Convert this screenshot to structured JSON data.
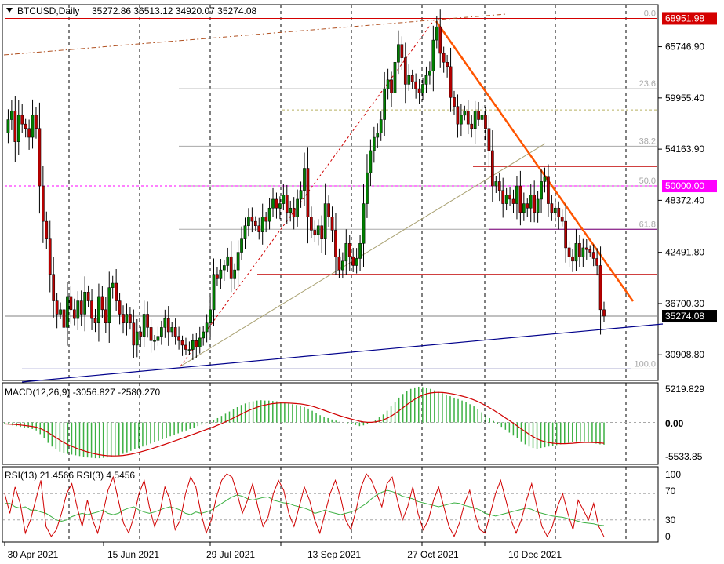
{
  "header": {
    "symbol": "BTCUSD,Daily",
    "ohlc": "35272.86 36513.12 34920.07 35274.08",
    "macd_label": "MACD(12,26,9) -3056.827 -2580.270",
    "rsi_label": "RSI(13) 21.4566  RSI(3) 4.5456"
  },
  "colors": {
    "up_candle": "#008000",
    "down_candle": "#b80000",
    "trendline_orange": "#ff5500",
    "blue_line": "#00008b",
    "resistance_red": "#c00000",
    "magenta": "#ff00ff",
    "macd_hist": "#3cb043",
    "signal": "#d00000",
    "rsi13": "#3cb043",
    "rsi3": "#d00000"
  },
  "price_axis": {
    "ticks": [
      "65746.90",
      "59955.40",
      "54163.90",
      "48372.40",
      "42491.80",
      "36700.30",
      "30908.80"
    ],
    "tags": [
      {
        "text": "68951.98",
        "bg": "#d40000",
        "value": 68951.98
      },
      {
        "text": "50000.00",
        "bg": "#ff00ff",
        "value": 50000
      },
      {
        "text": "35274.08",
        "bg": "#000000",
        "value": 35274.08
      }
    ]
  },
  "fibonacci": [
    "0.0",
    "23.6",
    "38.2",
    "50.0",
    "61.8",
    "100.0"
  ],
  "macd_axis": [
    "5219.829",
    "0.00",
    "-5533.85"
  ],
  "rsi_axis": [
    "100",
    "70",
    "30",
    "0"
  ],
  "date_axis": [
    "30 Apr 2021",
    "15 Jun 2021",
    "29 Jul 2021",
    "13 Sep 2021",
    "27 Oct 2021",
    "10 Dec 2021"
  ],
  "chart_data": {
    "type": "candlestick",
    "title": "BTCUSD,Daily",
    "last_ohlc": {
      "open": 35272.86,
      "high": 36513.12,
      "low": 34920.07,
      "close": 35274.08
    },
    "ylim": [
      28000,
      70500
    ],
    "x_ticks": [
      "30 Apr 2021",
      "15 Jun 2021",
      "29 Jul 2021",
      "13 Sep 2021",
      "27 Oct 2021",
      "10 Dec 2021"
    ],
    "close_path": [
      56000,
      57500,
      58500,
      55000,
      58000,
      57000,
      56500,
      55500,
      58000,
      56500,
      50000,
      46000,
      44000,
      40000,
      37000,
      35500,
      36000,
      34000,
      37500,
      36000,
      35000,
      37000,
      35500,
      38000,
      37000,
      35000,
      34500,
      37500,
      36000,
      34500,
      38500,
      39000,
      37000,
      35500,
      34500,
      35500,
      34500,
      32000,
      33500,
      33000,
      35500,
      34000,
      32500,
      32500,
      33000,
      34000,
      35000,
      33500,
      34000,
      33000,
      32500,
      32000,
      31500,
      31500,
      32500,
      31800,
      32800,
      33500,
      34500,
      36000,
      40000,
      39500,
      40500,
      41000,
      42000,
      39500,
      40500,
      42500,
      44000,
      45500,
      46500,
      46000,
      45500,
      44800,
      46500,
      46000,
      47500,
      48500,
      47500,
      48000,
      49000,
      47000,
      47500,
      46500,
      48500,
      49500,
      52000,
      46500,
      45000,
      44500,
      45500,
      44000,
      48000,
      46500,
      45000,
      42000,
      40500,
      41500,
      43500,
      42000,
      41000,
      41800,
      43500,
      48000,
      51500,
      54000,
      55500,
      56000,
      57500,
      61000,
      62000,
      60500,
      64000,
      66000,
      64500,
      61500,
      62500,
      61800,
      61000,
      60500,
      61500,
      62500,
      63000,
      66500,
      68000,
      65000,
      64000,
      63500,
      60000,
      59000,
      57000,
      58000,
      58500,
      57000,
      56500,
      58500,
      57500,
      58000,
      56500,
      54000,
      50000,
      50500,
      49500,
      48000,
      49000,
      48500,
      48000,
      50000,
      47000,
      48000,
      47500,
      49000,
      47000,
      48500,
      50500,
      51000,
      48000,
      47000,
      47500,
      46500,
      46000,
      43000,
      42000,
      41500,
      43500,
      42000,
      43000,
      42800,
      42500,
      41800,
      41000,
      36000,
      35274.08
    ],
    "fibonacci_levels": [
      {
        "label": "0.0",
        "price": 68951.98
      },
      {
        "label": "23.6",
        "price": 61000
      },
      {
        "label": "38.2",
        "price": 54500
      },
      {
        "label": "50.0",
        "price": 50000
      },
      {
        "label": "61.8",
        "price": 45100
      },
      {
        "label": "100.0",
        "price": 29300
      }
    ],
    "horizontal_levels": [
      {
        "price": 68951.98,
        "color": "#d40000"
      },
      {
        "price": 50000,
        "color": "#ff00ff",
        "style": "dashed"
      },
      {
        "price": 35274.08,
        "color": "#808080"
      },
      {
        "price": 52200,
        "color": "#c00000"
      },
      {
        "price": 45100,
        "color": "#800080"
      },
      {
        "price": 40000,
        "color": "#c00000"
      }
    ],
    "macd": {
      "name": "MACD(12,26,9)",
      "main": -3056.827,
      "signal": -2580.27,
      "ylim": [
        -5533.85,
        5219.829
      ],
      "histogram": [
        -200,
        -300,
        -400,
        -500,
        -600,
        -700,
        -800,
        -900,
        -1100,
        -1600,
        -2200,
        -2800,
        -3300,
        -3700,
        -4000,
        -4200,
        -4300,
        -4400,
        -4500,
        -4600,
        -4700,
        -4800,
        -4850,
        -4900,
        -4900,
        -4850,
        -4800,
        -4700,
        -4600,
        -4500,
        -4300,
        -4100,
        -3900,
        -3700,
        -3500,
        -3300,
        -3100,
        -2900,
        -2700,
        -2500,
        -2300,
        -2100,
        -1900,
        -1700,
        -1500,
        -1300,
        -1100,
        -900,
        -700,
        -500,
        -300,
        -100,
        100,
        300,
        600,
        900,
        1200,
        1500,
        1800,
        2100,
        2400,
        2600,
        2800,
        2900,
        3000,
        3050,
        3000,
        3000,
        2950,
        2900,
        2800,
        2700,
        2600,
        2500,
        2400,
        2300,
        2100,
        1900,
        1600,
        1300,
        1000,
        800,
        600,
        400,
        250,
        100,
        0,
        -100,
        -200,
        -350,
        -500,
        -400,
        -200,
        0,
        300,
        700,
        1100,
        1600,
        2200,
        2800,
        3400,
        3900,
        4300,
        4600,
        4800,
        4900,
        4850,
        4750,
        4600,
        4400,
        4200,
        4000,
        3800,
        3600,
        3400,
        3200,
        3000,
        2800,
        2500,
        2200,
        1800,
        1400,
        1000,
        600,
        200,
        -200,
        -600,
        -1000,
        -1400,
        -1800,
        -2200,
        -2600,
        -3000,
        -3300,
        -3500,
        -3600,
        -3500,
        -3400,
        -3300,
        -3200,
        -3100,
        -3000,
        -2900,
        -2800,
        -2700,
        -2600,
        -2600,
        -2600,
        -2700,
        -2800,
        -2900,
        -3000,
        -3050
      ]
    },
    "rsi": {
      "ylim": [
        0,
        100
      ],
      "levels": [
        100,
        70,
        30,
        0
      ],
      "series": [
        {
          "name": "RSI(13)",
          "last": 21.4566
        },
        {
          "name": "RSI(3)",
          "last": 4.5456
        }
      ],
      "rsi13": [
        55,
        55,
        50,
        48,
        50,
        45,
        45,
        42,
        40,
        35,
        30,
        28,
        30,
        35,
        38,
        40,
        38,
        40,
        42,
        45,
        40,
        38,
        40,
        45,
        48,
        50,
        45,
        42,
        40,
        42,
        45,
        48,
        50,
        48,
        45,
        40,
        38,
        42,
        40,
        42,
        45,
        50,
        55,
        60,
        65,
        68,
        66,
        62,
        60,
        62,
        64,
        65,
        60,
        58,
        56,
        55,
        52,
        50,
        48,
        45,
        40,
        42,
        45,
        42,
        40,
        38,
        40,
        42,
        45,
        50,
        55,
        62,
        68,
        72,
        75,
        73,
        70,
        66,
        64,
        62,
        58,
        56,
        54,
        52,
        50,
        52,
        54,
        56,
        55,
        52,
        50,
        48,
        45,
        40,
        38,
        36,
        38,
        40,
        42,
        44,
        46,
        48,
        46,
        42,
        40,
        38,
        36,
        35,
        34,
        32,
        30,
        28,
        26,
        25,
        24,
        22,
        21.4566
      ],
      "rsi3": [
        70,
        40,
        80,
        55,
        10,
        30,
        60,
        90,
        20,
        5,
        15,
        40,
        70,
        85,
        50,
        20,
        60,
        30,
        10,
        40,
        75,
        95,
        60,
        25,
        10,
        35,
        70,
        90,
        50,
        20,
        40,
        80,
        60,
        15,
        30,
        70,
        95,
        80,
        40,
        10,
        30,
        65,
        90,
        100,
        95,
        70,
        40,
        60,
        85,
        50,
        20,
        35,
        70,
        90,
        75,
        40,
        20,
        50,
        80,
        60,
        30,
        10,
        40,
        70,
        90,
        65,
        30,
        15,
        45,
        80,
        100,
        90,
        70,
        50,
        85,
        95,
        60,
        30,
        50,
        80,
        40,
        15,
        30,
        60,
        80,
        50,
        20,
        5,
        25,
        55,
        75,
        40,
        15,
        10,
        40,
        70,
        90,
        60,
        30,
        10,
        30,
        60,
        85,
        50,
        20,
        5,
        20,
        50,
        70,
        40,
        15,
        60,
        45,
        30,
        55,
        20,
        4.5456
      ]
    }
  }
}
